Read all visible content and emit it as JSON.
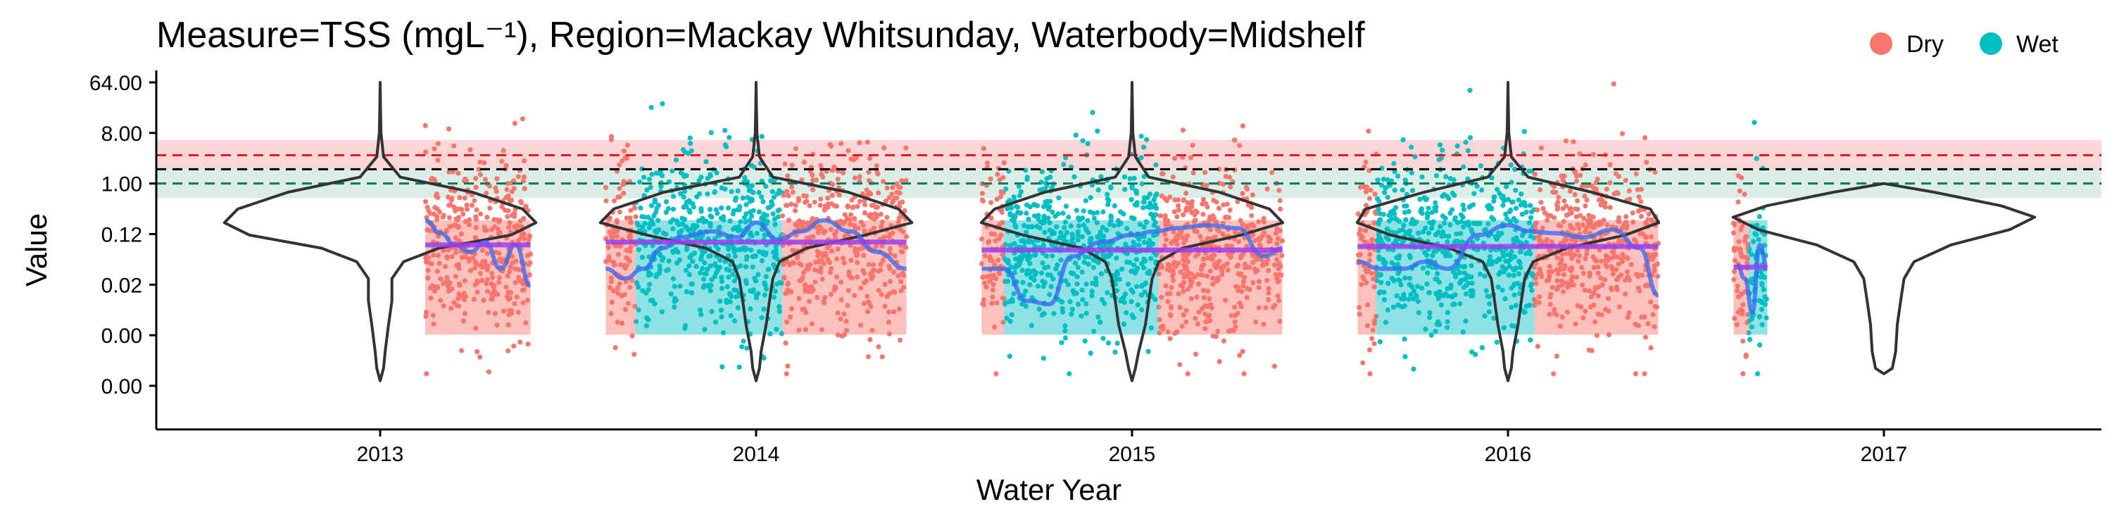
{
  "chart_data": {
    "type": "scatter",
    "title": "Measure=TSS (mgL⁻¹), Region=Mackay Whitsunday, Waterbody=Midshelf",
    "xlabel": "Water Year",
    "ylabel": "Value",
    "x_ticks": [
      "2013",
      "2014",
      "2015",
      "2016",
      "2017"
    ],
    "y_ticks": [
      "64.00",
      "8.00",
      "1.00",
      "0.12",
      "0.02",
      "0.00",
      "0.00"
    ],
    "y_scale": "log",
    "y_tick_values": [
      64,
      8,
      1,
      0.125,
      0.0156,
      0.00195,
      0.000244
    ],
    "grid": false,
    "legend": {
      "position": "top-right",
      "entries": [
        {
          "label": "Dry",
          "color": "#F8766D"
        },
        {
          "label": "Wet",
          "color": "#00BFC4"
        }
      ]
    },
    "reference_lines": [
      {
        "value": 3.2,
        "color": "#E41A1C",
        "style": "dashed"
      },
      {
        "value": 1.8,
        "color": "#000000",
        "style": "dashed"
      },
      {
        "value": 1.0,
        "color": "#00795C",
        "style": "dashed"
      }
    ],
    "reference_bands": [
      {
        "from": 1.8,
        "to": 6.0,
        "color": "#F8C8C8"
      },
      {
        "from": 0.55,
        "to": 1.8,
        "color": "#CDE8DE"
      }
    ],
    "water_years": [
      {
        "year": 2013,
        "periods": [
          {
            "season": "Dry",
            "start": 2013.12,
            "end": 2013.4
          }
        ],
        "median": 0.08,
        "smooth": [
          [
            2013.12,
            0.22
          ],
          [
            2013.16,
            0.13
          ],
          [
            2013.2,
            0.08
          ],
          [
            2013.24,
            0.06
          ],
          [
            2013.28,
            0.09
          ],
          [
            2013.32,
            0.03
          ],
          [
            2013.36,
            0.08
          ],
          [
            2013.4,
            0.015
          ]
        ]
      },
      {
        "year": 2014,
        "periods": [
          {
            "season": "Dry",
            "start": 2013.6,
            "end": 2013.68
          },
          {
            "season": "Wet",
            "start": 2013.68,
            "end": 2014.07
          },
          {
            "season": "Dry",
            "start": 2014.07,
            "end": 2014.4
          }
        ],
        "median": 0.09,
        "smooth": [
          [
            2013.6,
            0.03
          ],
          [
            2013.65,
            0.02
          ],
          [
            2013.7,
            0.03
          ],
          [
            2013.75,
            0.07
          ],
          [
            2013.8,
            0.11
          ],
          [
            2013.88,
            0.14
          ],
          [
            2013.95,
            0.11
          ],
          [
            2014.0,
            0.2
          ],
          [
            2014.06,
            0.1
          ],
          [
            2014.12,
            0.14
          ],
          [
            2014.18,
            0.22
          ],
          [
            2014.25,
            0.14
          ],
          [
            2014.32,
            0.06
          ],
          [
            2014.4,
            0.03
          ]
        ]
      },
      {
        "year": 2015,
        "periods": [
          {
            "season": "Dry",
            "start": 2014.6,
            "end": 2014.66
          },
          {
            "season": "Wet",
            "start": 2014.66,
            "end": 2015.07
          },
          {
            "season": "Dry",
            "start": 2015.07,
            "end": 2015.4
          }
        ],
        "median": 0.065,
        "smooth": [
          [
            2014.6,
            0.03
          ],
          [
            2014.66,
            0.03
          ],
          [
            2014.72,
            0.008
          ],
          [
            2014.78,
            0.007
          ],
          [
            2014.84,
            0.05
          ],
          [
            2014.92,
            0.09
          ],
          [
            2015.0,
            0.12
          ],
          [
            2015.06,
            0.14
          ],
          [
            2015.12,
            0.16
          ],
          [
            2015.2,
            0.18
          ],
          [
            2015.28,
            0.16
          ],
          [
            2015.35,
            0.05
          ],
          [
            2015.4,
            0.07
          ]
        ]
      },
      {
        "year": 2016,
        "periods": [
          {
            "season": "Dry",
            "start": 2015.6,
            "end": 2015.65
          },
          {
            "season": "Wet",
            "start": 2015.65,
            "end": 2016.07
          },
          {
            "season": "Dry",
            "start": 2016.07,
            "end": 2016.4
          }
        ],
        "median": 0.075,
        "smooth": [
          [
            2015.6,
            0.04
          ],
          [
            2015.66,
            0.03
          ],
          [
            2015.72,
            0.03
          ],
          [
            2015.78,
            0.04
          ],
          [
            2015.84,
            0.03
          ],
          [
            2015.92,
            0.12
          ],
          [
            2016.0,
            0.18
          ],
          [
            2016.06,
            0.14
          ],
          [
            2016.12,
            0.13
          ],
          [
            2016.2,
            0.11
          ],
          [
            2016.28,
            0.15
          ],
          [
            2016.35,
            0.07
          ],
          [
            2016.4,
            0.01
          ]
        ]
      },
      {
        "year": 2017,
        "periods": [
          {
            "season": "Dry",
            "start": 2016.6,
            "end": 2016.64
          },
          {
            "season": "Wet",
            "start": 2016.64,
            "end": 2016.69
          }
        ],
        "median": 0.032,
        "smooth": [
          [
            2016.61,
            0.035
          ],
          [
            2016.63,
            0.02
          ],
          [
            2016.65,
            0.005
          ],
          [
            2016.67,
            0.08
          ],
          [
            2016.69,
            0.03
          ]
        ]
      }
    ],
    "violins": [
      {
        "year": 2013,
        "profile": [
          [
            64.0,
            0.0
          ],
          [
            24.0,
            0.002
          ],
          [
            8.0,
            0.005
          ],
          [
            3.0,
            0.02
          ],
          [
            1.3,
            0.12
          ],
          [
            0.7,
            0.55
          ],
          [
            0.35,
            0.85
          ],
          [
            0.2,
            0.93
          ],
          [
            0.12,
            0.78
          ],
          [
            0.07,
            0.35
          ],
          [
            0.04,
            0.14
          ],
          [
            0.02,
            0.07
          ],
          [
            0.008,
            0.07
          ],
          [
            0.003,
            0.05
          ],
          [
            0.001,
            0.03
          ],
          [
            0.0005,
            0.02
          ],
          [
            0.0003,
            0.0
          ]
        ]
      },
      {
        "year": 2014,
        "profile": [
          [
            64.0,
            0.0
          ],
          [
            24.0,
            0.002
          ],
          [
            8.0,
            0.005
          ],
          [
            3.0,
            0.02
          ],
          [
            1.3,
            0.1
          ],
          [
            0.7,
            0.55
          ],
          [
            0.35,
            0.85
          ],
          [
            0.2,
            0.93
          ],
          [
            0.12,
            0.65
          ],
          [
            0.07,
            0.3
          ],
          [
            0.04,
            0.14
          ],
          [
            0.02,
            0.1
          ],
          [
            0.008,
            0.08
          ],
          [
            0.003,
            0.06
          ],
          [
            0.001,
            0.03
          ],
          [
            0.0005,
            0.02
          ],
          [
            0.0003,
            0.0
          ]
        ]
      },
      {
        "year": 2015,
        "profile": [
          [
            64.0,
            0.0
          ],
          [
            24.0,
            0.002
          ],
          [
            8.0,
            0.005
          ],
          [
            3.0,
            0.02
          ],
          [
            1.3,
            0.1
          ],
          [
            0.7,
            0.52
          ],
          [
            0.35,
            0.82
          ],
          [
            0.2,
            0.9
          ],
          [
            0.12,
            0.65
          ],
          [
            0.07,
            0.3
          ],
          [
            0.04,
            0.16
          ],
          [
            0.02,
            0.12
          ],
          [
            0.008,
            0.1
          ],
          [
            0.003,
            0.08
          ],
          [
            0.001,
            0.04
          ],
          [
            0.0005,
            0.02
          ],
          [
            0.0003,
            0.0
          ]
        ]
      },
      {
        "year": 2016,
        "profile": [
          [
            64.0,
            0.0
          ],
          [
            24.0,
            0.002
          ],
          [
            8.0,
            0.005
          ],
          [
            3.0,
            0.02
          ],
          [
            1.3,
            0.12
          ],
          [
            0.7,
            0.5
          ],
          [
            0.35,
            0.85
          ],
          [
            0.2,
            0.9
          ],
          [
            0.12,
            0.7
          ],
          [
            0.07,
            0.35
          ],
          [
            0.04,
            0.15
          ],
          [
            0.02,
            0.1
          ],
          [
            0.008,
            0.08
          ],
          [
            0.003,
            0.06
          ],
          [
            0.001,
            0.03
          ],
          [
            0.0005,
            0.02
          ],
          [
            0.0003,
            0.0
          ]
        ]
      },
      {
        "year": 2017,
        "profile": [
          [
            1.0,
            0.0
          ],
          [
            0.7,
            0.3
          ],
          [
            0.4,
            0.7
          ],
          [
            0.25,
            0.9
          ],
          [
            0.15,
            0.75
          ],
          [
            0.08,
            0.4
          ],
          [
            0.04,
            0.18
          ],
          [
            0.02,
            0.12
          ],
          [
            0.008,
            0.1
          ],
          [
            0.003,
            0.08
          ],
          [
            0.001,
            0.07
          ],
          [
            0.0005,
            0.05
          ],
          [
            0.0004,
            0.0
          ]
        ]
      }
    ],
    "colors": {
      "dry": "#F8766D",
      "wet": "#00BFC4",
      "smooth": "#3C6CF0",
      "median": "#9B3DF0",
      "violin": "#333333"
    }
  }
}
